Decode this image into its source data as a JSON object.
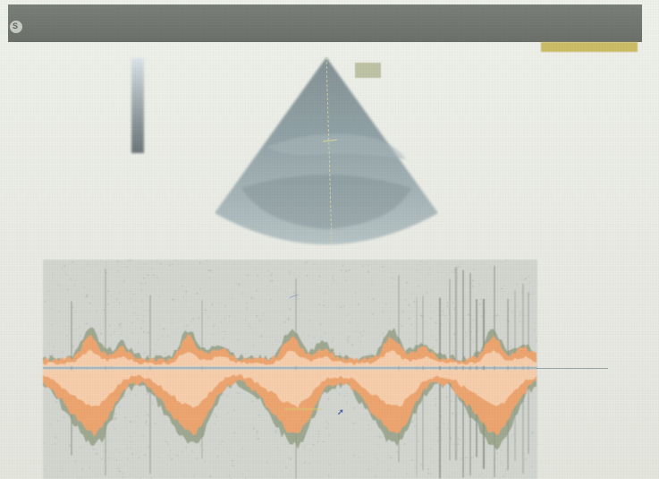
{
  "header": {
    "left_line1": "",
    "left_line2": "",
    "center": "",
    "right_line1": "",
    "right_line2": ""
  },
  "overlay": {
    "logo_glyph": "S"
  },
  "left_params": [],
  "right_params": [],
  "doppler": {
    "left_scale": [],
    "right_scale": [],
    "baseline_level": 0.5
  },
  "colors": {
    "header_bg": "#6e726c",
    "preset_highlight": "#c9b85a",
    "spectrum_orange": "#f1a46f",
    "spectrum_peach": "#f7d3b3",
    "baseline": "#8e9da2",
    "cursor_blue": "#2a4aa8"
  },
  "icons": {
    "logo": "logo-circle-icon",
    "cursor": "arrow-cursor-icon"
  }
}
